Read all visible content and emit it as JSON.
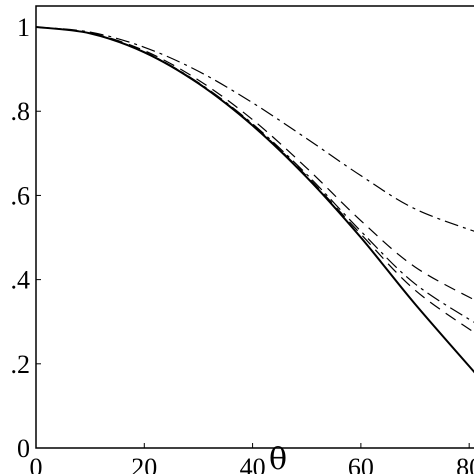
{
  "chart_data": {
    "type": "line",
    "title": "",
    "xlabel": "θ",
    "ylabel": "",
    "xlim": [
      0,
      82
    ],
    "ylim": [
      0,
      1.05
    ],
    "grid": false,
    "legend": "none",
    "x_ticks": [
      0,
      20,
      40,
      60,
      80
    ],
    "x_tick_labels": [
      "0",
      "20",
      "40",
      "60",
      "80"
    ],
    "y_ticks": [
      0,
      0.2,
      0.4,
      0.6,
      0.8,
      1
    ],
    "y_tick_labels": [
      "0",
      ".2",
      ".4",
      ".6",
      ".8",
      "1"
    ],
    "series": [
      {
        "style": "solid",
        "x": [
          0,
          10,
          20,
          30,
          40,
          50,
          60,
          70,
          82
        ],
        "y": [
          1.0,
          0.985,
          0.94,
          0.866,
          0.766,
          0.643,
          0.5,
          0.342,
          0.165
        ]
      },
      {
        "style": "dashdot",
        "x": [
          0,
          10,
          20,
          30,
          40,
          50,
          60,
          70,
          82
        ],
        "y": [
          1.0,
          0.988,
          0.952,
          0.895,
          0.82,
          0.735,
          0.647,
          0.568,
          0.51
        ]
      },
      {
        "style": "dashed",
        "x": [
          0,
          10,
          20,
          30,
          40,
          50,
          60,
          70,
          82
        ],
        "y": [
          1.0,
          0.986,
          0.944,
          0.874,
          0.78,
          0.665,
          0.54,
          0.43,
          0.345
        ]
      },
      {
        "style": "dashdot",
        "x": [
          0,
          10,
          20,
          30,
          40,
          50,
          60,
          70,
          82
        ],
        "y": [
          1.0,
          0.985,
          0.941,
          0.868,
          0.77,
          0.65,
          0.515,
          0.39,
          0.29
        ]
      },
      {
        "style": "dashed",
        "x": [
          0,
          10,
          20,
          30,
          40,
          50,
          60,
          70,
          82
        ],
        "y": [
          1.0,
          0.985,
          0.94,
          0.867,
          0.768,
          0.646,
          0.508,
          0.375,
          0.265
        ]
      }
    ]
  }
}
